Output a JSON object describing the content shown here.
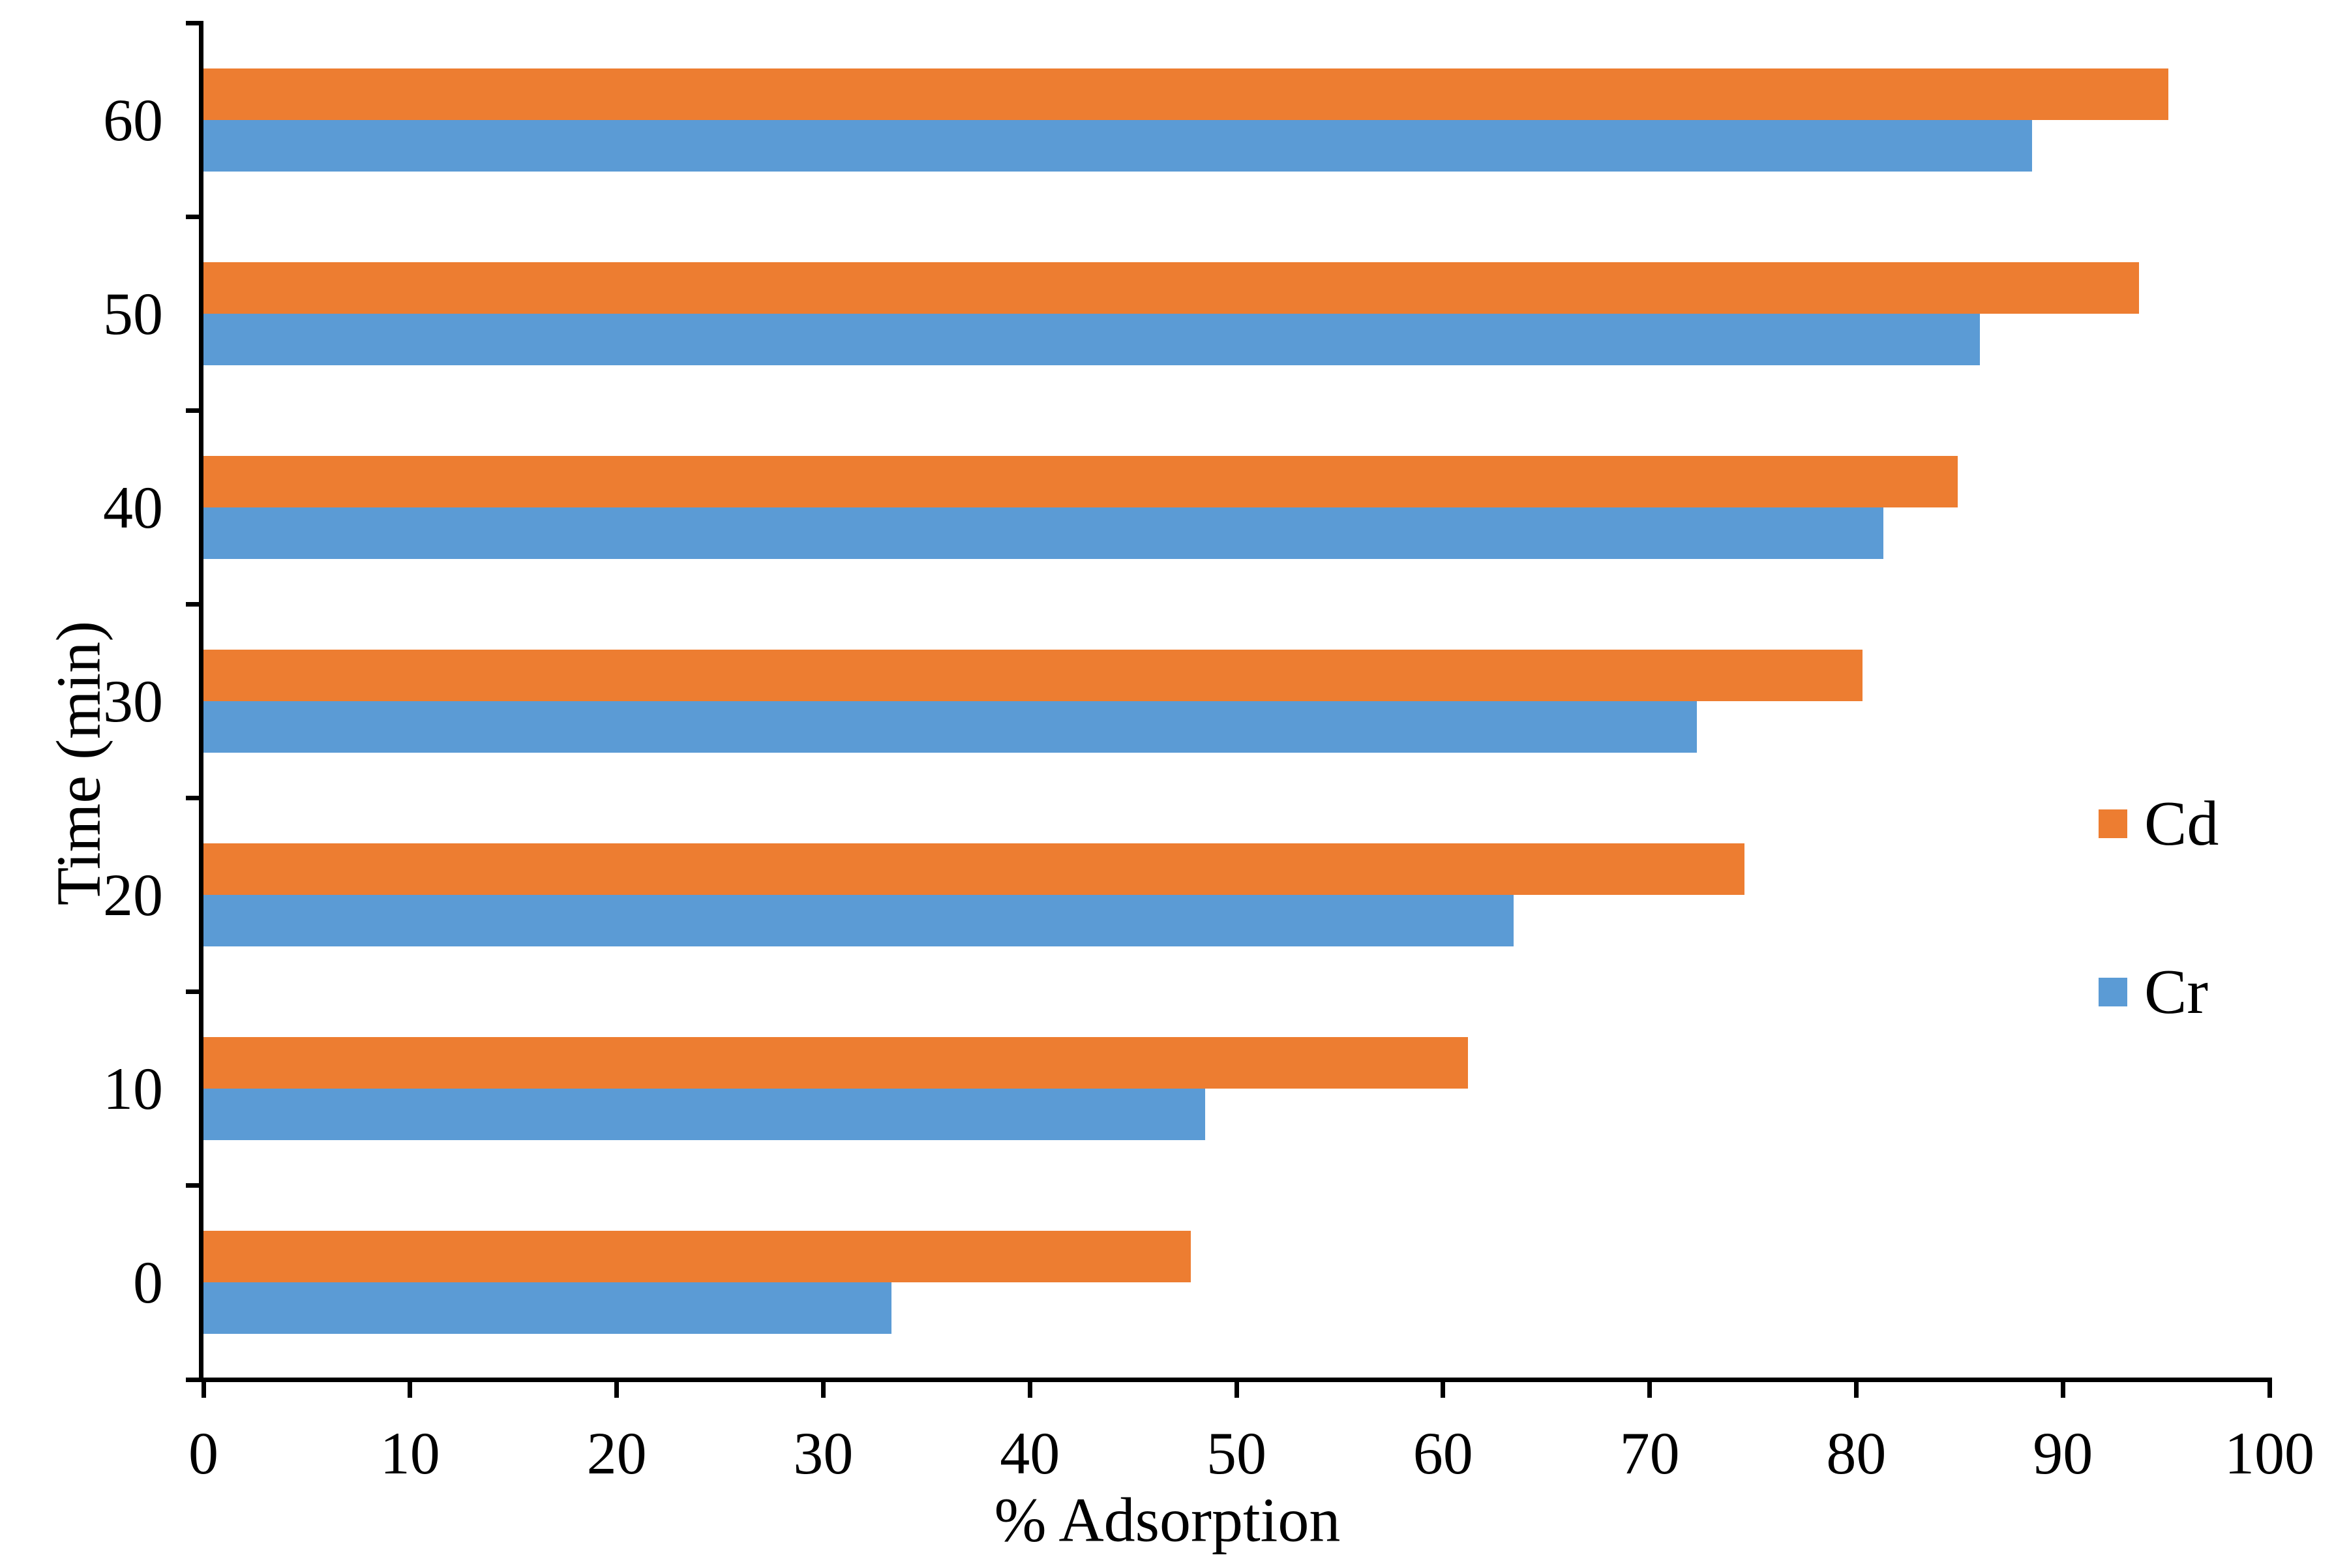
{
  "chart_data": {
    "type": "bar",
    "orientation": "horizontal",
    "title": "",
    "xlabel": "% Adsorption",
    "ylabel": "Time (min)",
    "categories": [
      "60",
      "50",
      "40",
      "30",
      "20",
      "10",
      "0"
    ],
    "series": [
      {
        "name": "Cd",
        "color": "#ED7D31",
        "values": [
          95.1,
          93.7,
          84.9,
          80.3,
          74.6,
          61.2,
          47.8
        ]
      },
      {
        "name": "Cr",
        "color": "#5B9BD5",
        "values": [
          88.5,
          86.0,
          81.3,
          72.3,
          63.4,
          48.5,
          33.3
        ]
      }
    ],
    "xlim": [
      0,
      100
    ],
    "x_ticks": [
      "0",
      "10",
      "20",
      "30",
      "40",
      "50",
      "60",
      "70",
      "80",
      "90",
      "100"
    ],
    "grid": false,
    "legend_position": "right",
    "axis_color": "#000000",
    "background_color": "#FFFFFF"
  },
  "legend": {
    "items": [
      {
        "label": "Cd",
        "color": "#ED7D31"
      },
      {
        "label": "Cr",
        "color": "#5B9BD5"
      }
    ]
  }
}
